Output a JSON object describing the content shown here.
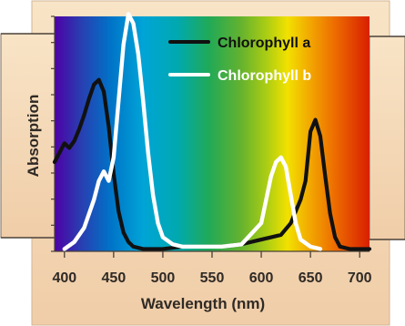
{
  "chart_data": {
    "type": "line",
    "xlabel": "Wavelength (nm)",
    "ylabel": "Absorption",
    "xlim": [
      390,
      710
    ],
    "ylim": [
      0,
      100
    ],
    "x_ticks": [
      "400",
      "450",
      "500",
      "550",
      "600",
      "650",
      "700"
    ],
    "legend_position": "top-right",
    "grid": false,
    "spectrum_background": true,
    "series": [
      {
        "name": "Chlorophyll a",
        "color": "#111111",
        "x": [
          390,
          395,
          400,
          405,
          410,
          415,
          420,
          425,
          430,
          435,
          440,
          445,
          450,
          455,
          460,
          465,
          470,
          480,
          490,
          500,
          520,
          540,
          560,
          580,
          600,
          610,
          620,
          630,
          640,
          645,
          650,
          655,
          660,
          665,
          670,
          675,
          680,
          690,
          700,
          710
        ],
        "y": [
          38,
          42,
          46,
          44,
          47,
          52,
          58,
          65,
          71,
          73,
          68,
          53,
          33,
          17,
          8,
          4,
          2,
          1,
          1,
          1,
          2,
          2,
          2,
          3,
          5,
          6,
          7,
          12,
          22,
          30,
          51,
          56,
          49,
          32,
          16,
          6,
          2,
          1,
          1,
          1
        ]
      },
      {
        "name": "Chlorophyll b",
        "color": "#ffffff",
        "x": [
          400,
          410,
          420,
          430,
          435,
          440,
          445,
          450,
          455,
          460,
          465,
          470,
          475,
          480,
          485,
          490,
          495,
          500,
          510,
          520,
          540,
          560,
          580,
          600,
          605,
          610,
          615,
          620,
          625,
          630,
          635,
          640,
          650,
          660
        ],
        "y": [
          1,
          4,
          10,
          22,
          30,
          34,
          30,
          40,
          64,
          88,
          101,
          97,
          84,
          64,
          42,
          24,
          12,
          6,
          3,
          2,
          2,
          2,
          3,
          12,
          22,
          32,
          38,
          40,
          36,
          24,
          12,
          5,
          2,
          1
        ]
      }
    ]
  }
}
